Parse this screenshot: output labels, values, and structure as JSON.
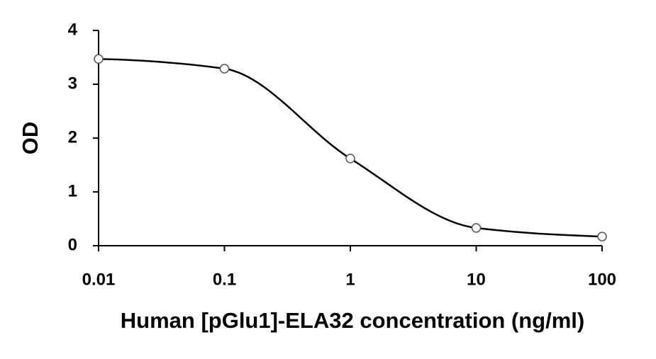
{
  "chart_data": {
    "type": "scatter",
    "x_label": "Human [pGlu1]-ELA32 concentration (ng/ml)",
    "y_label": "OD",
    "x": [
      0.01,
      0.1,
      1,
      10,
      100
    ],
    "values": [
      3.47,
      3.29,
      1.62,
      0.33,
      0.17
    ],
    "color": "#000000",
    "marker_color": "#555555",
    "xscale": "log",
    "xlim": [
      0.01,
      100
    ],
    "xticks": [
      0.01,
      0.1,
      1,
      10,
      100
    ],
    "ylim": [
      0,
      4
    ],
    "yticks": [
      0,
      1,
      2,
      3,
      4
    ],
    "grid": false,
    "fit_curve": true
  }
}
